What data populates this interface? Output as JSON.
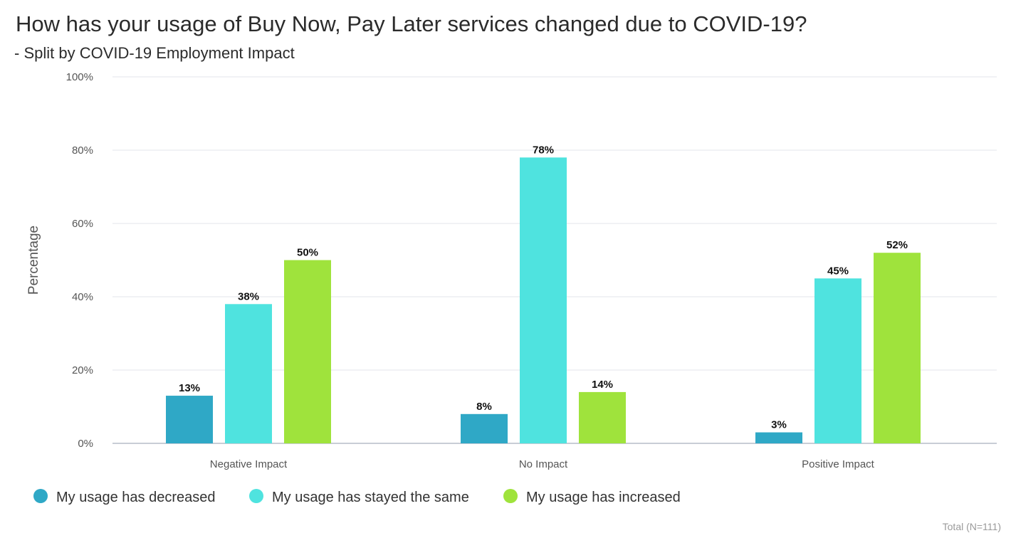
{
  "header": {
    "title": "How has your usage of Buy Now, Pay Later services changed due to COVID-19?",
    "subtitle": "- Split by COVID-19 Employment Impact"
  },
  "footnote": "Total (N=111)",
  "chart_data": {
    "type": "bar",
    "title": "How has your usage of Buy Now, Pay Later services changed due to COVID-19?",
    "subtitle": "- Split by COVID-19 Employment Impact",
    "xlabel": "",
    "ylabel": "Percentage",
    "ylim": [
      0,
      100
    ],
    "yticks": [
      "0%",
      "20%",
      "40%",
      "60%",
      "80%",
      "100%"
    ],
    "grid": true,
    "legend_position": "bottom-left",
    "categories": [
      "Negative Impact",
      "No Impact",
      "Positive Impact"
    ],
    "series": [
      {
        "name": "My usage has decreased",
        "color": "#2fa8c6",
        "values": [
          13,
          8,
          3
        ],
        "labels": [
          "13%",
          "8%",
          "3%"
        ]
      },
      {
        "name": "My usage has stayed the same",
        "color": "#4fe3df",
        "values": [
          38,
          78,
          45
        ],
        "labels": [
          "38%",
          "78%",
          "45%"
        ]
      },
      {
        "name": "My usage has increased",
        "color": "#9fe33c",
        "values": [
          50,
          14,
          52
        ],
        "labels": [
          "50%",
          "14%",
          "52%"
        ]
      }
    ]
  }
}
